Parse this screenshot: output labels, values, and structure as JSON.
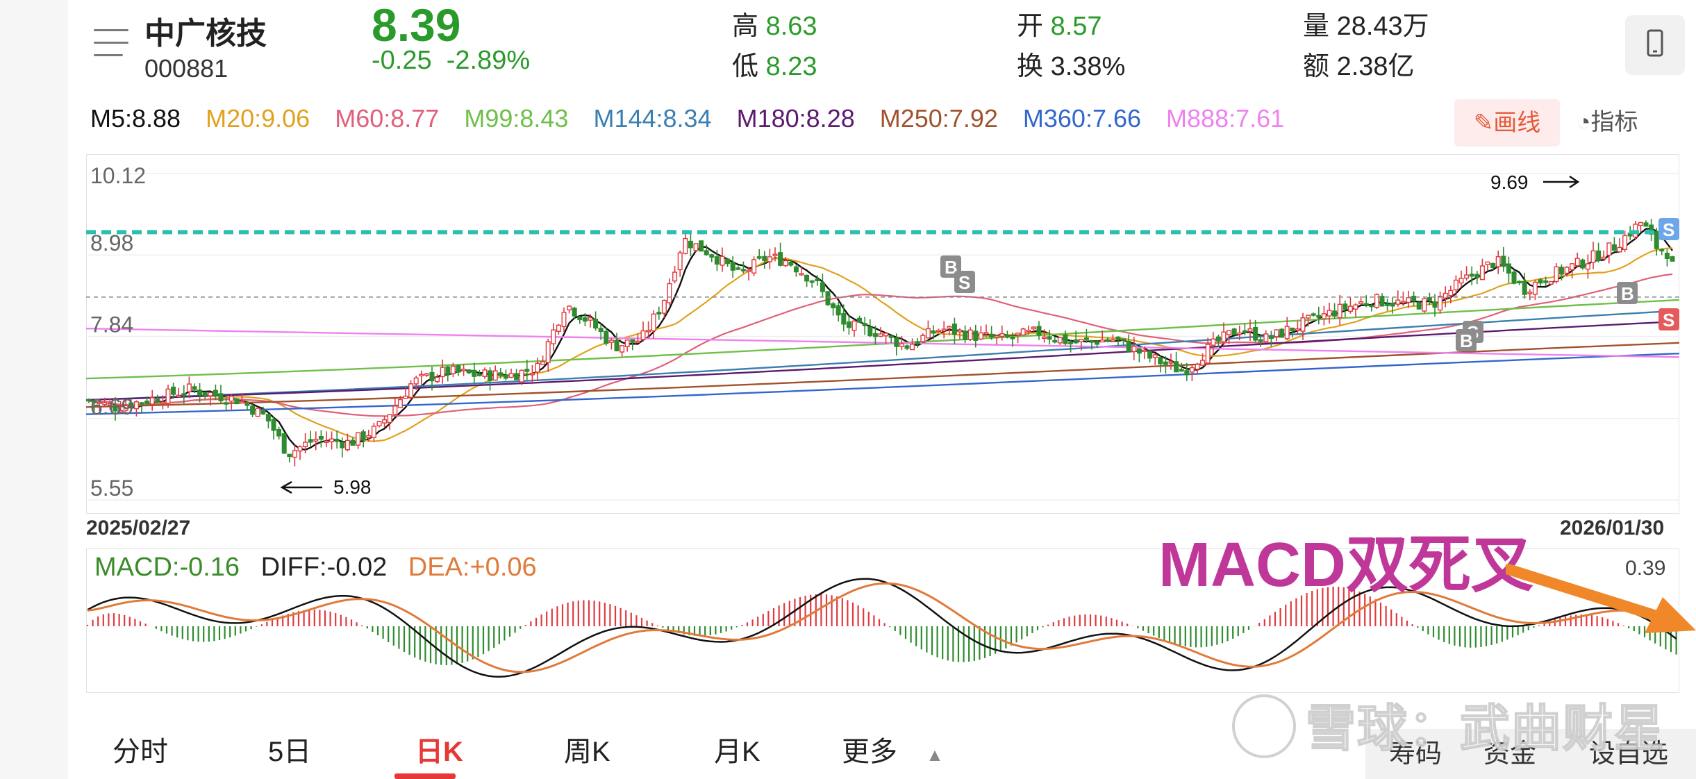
{
  "header": {
    "name": "中广核技",
    "code": "000881",
    "price": "8.39",
    "change": "-0.25",
    "change_pct": "-2.89%",
    "high_label": "高",
    "high": "8.63",
    "low_label": "低",
    "low": "8.23",
    "open_label": "开",
    "open": "8.57",
    "turnover_label": "换",
    "turnover": "3.38%",
    "volume_label": "量",
    "volume": "28.43万",
    "amount_label": "额",
    "amount": "2.38亿"
  },
  "ma": {
    "m5": "M5:8.88",
    "m20": "M20:9.06",
    "m60": "M60:8.77",
    "m99": "M99:8.43",
    "m144": "M144:8.34",
    "m180": "M180:8.28",
    "m250": "M250:7.92",
    "m360": "M360:7.66",
    "m888": "M888:7.61",
    "colors": {
      "m5": "#111111",
      "m20": "#e0a21e",
      "m60": "#e0607a",
      "m99": "#6fbf4a",
      "m144": "#3a7fb0",
      "m180": "#5b1a6e",
      "m250": "#a0522d",
      "m360": "#3366cc",
      "m888": "#ee82ee"
    }
  },
  "toolbar": {
    "draw_label": "画线",
    "indicator_label": "指标"
  },
  "chart_data": [
    {
      "type": "candlestick",
      "y_ticks": [
        "10.12",
        "8.98",
        "7.84",
        "6.69",
        "5.55"
      ],
      "ylim": [
        5.55,
        10.12
      ],
      "x_start": "2025/02/27",
      "x_end": "2026/01/30",
      "high_mark": "9.69",
      "low_mark": "5.98",
      "resistance": 9.3,
      "last_close": 8.39,
      "bs_markers": [
        "B",
        "S",
        "S",
        "B",
        "B",
        "S",
        "S"
      ],
      "series_hint": "daily candles Feb 2025 – Jan 2026"
    },
    {
      "type": "macd",
      "macd": "MACD:-0.16",
      "diff": "DIFF:-0.02",
      "dea": "DEA:+0.06",
      "ymax_label": "0.39"
    }
  ],
  "tabs": [
    "分时",
    "5日",
    "日K",
    "周K",
    "月K",
    "更多"
  ],
  "bottom": {
    "a": "寿码",
    "b": "资金",
    "c": "设自选"
  },
  "watermark": "雪球：武曲财星",
  "annotation": "MACD双死叉"
}
